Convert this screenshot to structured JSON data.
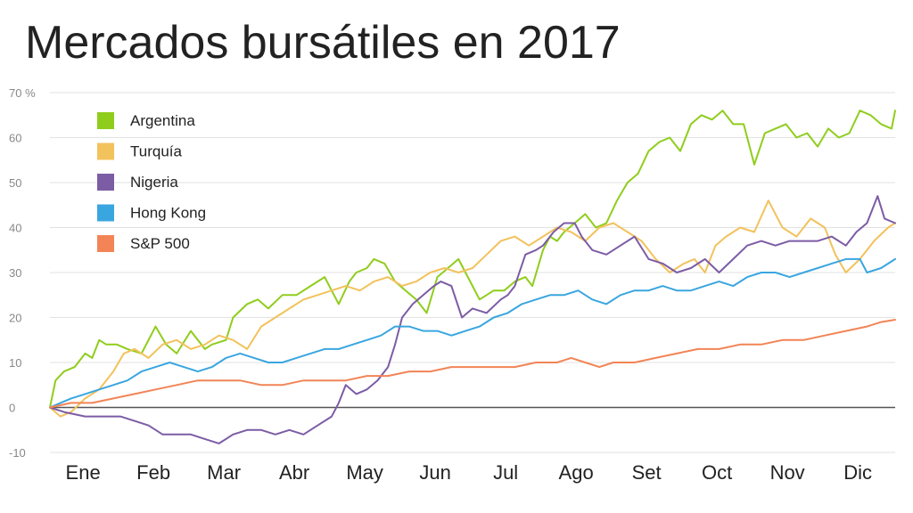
{
  "title": "Mercados bursátiles en 2017",
  "chart_data": {
    "type": "line",
    "title": "Mercados bursátiles en 2017",
    "y_unit": "%",
    "ylim": [
      -10,
      70
    ],
    "y_ticks": [
      -10,
      0,
      10,
      20,
      30,
      40,
      50,
      60,
      70
    ],
    "y_tick_labels": [
      "-10",
      "0",
      "10",
      "20",
      "30",
      "40",
      "50",
      "60",
      "70"
    ],
    "x_range_months": [
      0,
      12
    ],
    "x_ticks": [
      "Ene",
      "Feb",
      "Mar",
      "Abr",
      "May",
      "Jun",
      "Jul",
      "Ago",
      "Set",
      "Oct",
      "Nov",
      "Dic"
    ],
    "grid": true,
    "legend_position": "top-left",
    "series": [
      {
        "name": "Argentina",
        "color": "#8fcd1c",
        "x": [
          0,
          0.08,
          0.2,
          0.35,
          0.5,
          0.6,
          0.7,
          0.8,
          0.95,
          1.1,
          1.3,
          1.5,
          1.65,
          1.8,
          2.0,
          2.2,
          2.3,
          2.5,
          2.6,
          2.8,
          2.95,
          3.1,
          3.3,
          3.5,
          3.7,
          3.9,
          4.1,
          4.25,
          4.35,
          4.5,
          4.6,
          4.75,
          4.9,
          5.05,
          5.2,
          5.35,
          5.5,
          5.65,
          5.8,
          5.9,
          6.1,
          6.3,
          6.45,
          6.6,
          6.75,
          6.85,
          7.0,
          7.1,
          7.2,
          7.3,
          7.45,
          7.6,
          7.75,
          7.9,
          8.05,
          8.2,
          8.35,
          8.5,
          8.65,
          8.8,
          8.95,
          9.1,
          9.25,
          9.4,
          9.55,
          9.7,
          9.85,
          10.0,
          10.15,
          10.3,
          10.45,
          10.6,
          10.75,
          10.9,
          11.05,
          11.2,
          11.35,
          11.5,
          11.65,
          11.8,
          11.95,
          12.0
        ],
        "y": [
          0,
          6,
          8,
          9,
          12,
          11,
          15,
          14,
          14,
          13,
          12,
          18,
          14,
          12,
          17,
          13,
          14,
          15,
          20,
          23,
          24,
          22,
          25,
          25,
          27,
          29,
          23,
          28,
          30,
          31,
          33,
          32,
          28,
          26,
          24,
          21,
          29,
          31,
          33,
          30,
          24,
          26,
          26,
          28,
          29,
          27,
          35,
          38,
          37,
          39,
          41,
          43,
          40,
          41,
          46,
          50,
          52,
          57,
          59,
          60,
          57,
          63,
          65,
          64,
          66,
          63,
          63,
          54,
          61,
          62,
          63,
          60,
          61,
          58,
          62,
          60,
          61,
          66,
          65,
          63,
          62,
          66
        ]
      },
      {
        "name": "Turquía",
        "color": "#f2c25c",
        "x": [
          0,
          0.15,
          0.3,
          0.5,
          0.7,
          0.9,
          1.05,
          1.2,
          1.4,
          1.6,
          1.8,
          2.0,
          2.2,
          2.4,
          2.6,
          2.8,
          3.0,
          3.2,
          3.4,
          3.6,
          3.8,
          4.0,
          4.2,
          4.4,
          4.6,
          4.8,
          5.0,
          5.2,
          5.4,
          5.6,
          5.8,
          6.0,
          6.2,
          6.4,
          6.6,
          6.8,
          7.0,
          7.2,
          7.4,
          7.6,
          7.8,
          8.0,
          8.2,
          8.4,
          8.6,
          8.8,
          9.0,
          9.15,
          9.3,
          9.45,
          9.6,
          9.8,
          10.0,
          10.2,
          10.4,
          10.6,
          10.8,
          11.0,
          11.15,
          11.3,
          11.5,
          11.7,
          11.9,
          12.0
        ],
        "y": [
          0,
          -2,
          -1,
          2,
          4,
          8,
          12,
          13,
          11,
          14,
          15,
          13,
          14,
          16,
          15,
          13,
          18,
          20,
          22,
          24,
          25,
          26,
          27,
          26,
          28,
          29,
          27,
          28,
          30,
          31,
          30,
          31,
          34,
          37,
          38,
          36,
          38,
          40,
          39,
          37,
          40,
          41,
          39,
          37,
          33,
          30,
          32,
          33,
          30,
          36,
          38,
          40,
          39,
          46,
          40,
          38,
          42,
          40,
          34,
          30,
          33,
          37,
          40,
          41
        ]
      },
      {
        "name": "Nigeria",
        "color": "#7c5ca5",
        "x": [
          0,
          0.2,
          0.5,
          0.8,
          1.0,
          1.2,
          1.4,
          1.6,
          1.8,
          2.0,
          2.2,
          2.4,
          2.6,
          2.8,
          3.0,
          3.2,
          3.4,
          3.6,
          3.8,
          4.0,
          4.1,
          4.2,
          4.35,
          4.5,
          4.65,
          4.8,
          4.9,
          5.0,
          5.15,
          5.3,
          5.45,
          5.55,
          5.7,
          5.85,
          6.0,
          6.2,
          6.4,
          6.5,
          6.6,
          6.75,
          6.9,
          7.0,
          7.15,
          7.3,
          7.45,
          7.55,
          7.7,
          7.9,
          8.1,
          8.3,
          8.5,
          8.7,
          8.9,
          9.1,
          9.3,
          9.5,
          9.7,
          9.9,
          10.1,
          10.3,
          10.5,
          10.7,
          10.9,
          11.1,
          11.3,
          11.45,
          11.6,
          11.75,
          11.85,
          12.0
        ],
        "y": [
          0,
          -1,
          -2,
          -2,
          -2,
          -3,
          -4,
          -6,
          -6,
          -6,
          -7,
          -8,
          -6,
          -5,
          -5,
          -6,
          -5,
          -6,
          -4,
          -2,
          1,
          5,
          3,
          4,
          6,
          9,
          14,
          20,
          23,
          25,
          27,
          28,
          27,
          20,
          22,
          21,
          24,
          25,
          27,
          34,
          35,
          36,
          39,
          41,
          41,
          38,
          35,
          34,
          36,
          38,
          33,
          32,
          30,
          31,
          33,
          30,
          33,
          36,
          37,
          36,
          37,
          37,
          37,
          38,
          36,
          39,
          41,
          47,
          42,
          41
        ]
      },
      {
        "name": "Hong Kong",
        "color": "#3aa6e0",
        "x": [
          0,
          0.15,
          0.3,
          0.5,
          0.7,
          0.9,
          1.1,
          1.3,
          1.5,
          1.7,
          1.9,
          2.1,
          2.3,
          2.5,
          2.7,
          2.9,
          3.1,
          3.3,
          3.5,
          3.7,
          3.9,
          4.1,
          4.3,
          4.5,
          4.7,
          4.9,
          5.1,
          5.3,
          5.5,
          5.7,
          5.9,
          6.1,
          6.3,
          6.5,
          6.7,
          6.9,
          7.1,
          7.3,
          7.5,
          7.7,
          7.9,
          8.1,
          8.3,
          8.5,
          8.7,
          8.9,
          9.1,
          9.3,
          9.5,
          9.7,
          9.9,
          10.1,
          10.3,
          10.5,
          10.7,
          10.9,
          11.1,
          11.3,
          11.5,
          11.6,
          11.8,
          12.0
        ],
        "y": [
          0,
          1,
          2,
          3,
          4,
          5,
          6,
          8,
          9,
          10,
          9,
          8,
          9,
          11,
          12,
          11,
          10,
          10,
          11,
          12,
          13,
          13,
          14,
          15,
          16,
          18,
          18,
          17,
          17,
          16,
          17,
          18,
          20,
          21,
          23,
          24,
          25,
          25,
          26,
          24,
          23,
          25,
          26,
          26,
          27,
          26,
          26,
          27,
          28,
          27,
          29,
          30,
          30,
          29,
          30,
          31,
          32,
          33,
          33,
          30,
          31,
          33
        ]
      },
      {
        "name": "S&P 500",
        "color": "#f28456",
        "x": [
          0,
          0.3,
          0.6,
          0.9,
          1.2,
          1.5,
          1.8,
          2.1,
          2.4,
          2.7,
          3.0,
          3.3,
          3.6,
          3.9,
          4.2,
          4.5,
          4.8,
          5.1,
          5.4,
          5.7,
          6.0,
          6.3,
          6.6,
          6.9,
          7.2,
          7.4,
          7.6,
          7.8,
          8.0,
          8.3,
          8.6,
          8.9,
          9.2,
          9.5,
          9.8,
          10.1,
          10.4,
          10.7,
          11.0,
          11.3,
          11.6,
          11.8,
          12.0
        ],
        "y": [
          0,
          1,
          1,
          2,
          3,
          4,
          5,
          6,
          6,
          6,
          5,
          5,
          6,
          6,
          6,
          7,
          7,
          8,
          8,
          9,
          9,
          9,
          9,
          10,
          10,
          11,
          10,
          9,
          10,
          10,
          11,
          12,
          13,
          13,
          14,
          14,
          15,
          15,
          16,
          17,
          18,
          19,
          19.5
        ]
      }
    ]
  }
}
